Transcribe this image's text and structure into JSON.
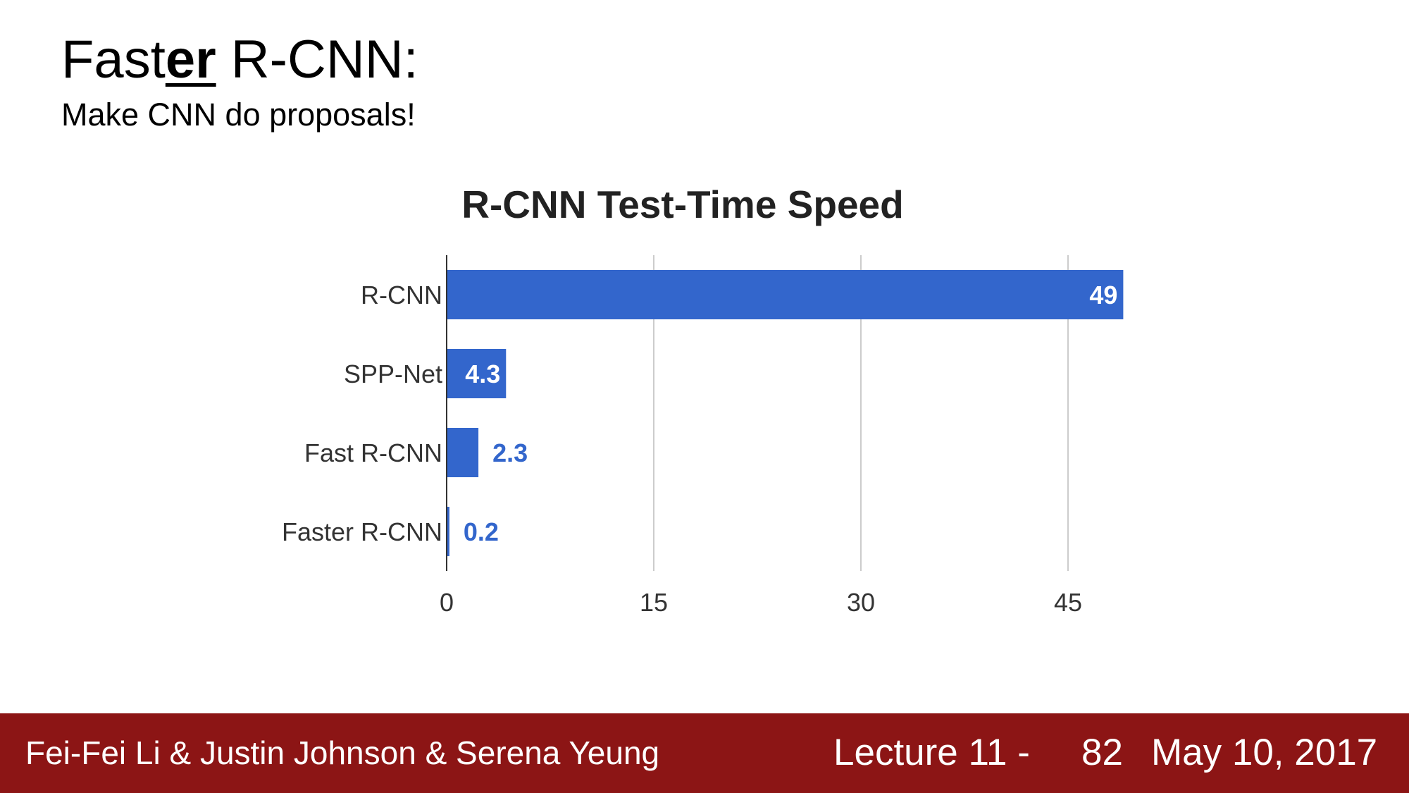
{
  "slide": {
    "title_prefix": "Fast",
    "title_emphasis": "er",
    "title_suffix": " R-CNN:",
    "subtitle": "Make CNN do proposals!"
  },
  "chart_data": {
    "type": "bar",
    "orientation": "horizontal",
    "title": "R-CNN Test-Time Speed",
    "categories": [
      "R-CNN",
      "SPP-Net",
      "Fast R-CNN",
      "Faster R-CNN"
    ],
    "values": [
      49,
      4.3,
      2.3,
      0.2
    ],
    "data_labels": [
      "49",
      "4.3",
      "2.3",
      "0.2"
    ],
    "x_ticks": [
      "0",
      "15",
      "30",
      "45"
    ],
    "xlim": [
      0,
      51
    ],
    "grid": true,
    "bar_color": "#3366cc",
    "label_inside_color": "#ffffff",
    "label_outside_color": "#3366cc"
  },
  "footer": {
    "authors": "Fei-Fei Li & Justin Johnson & Serena Yeung",
    "lecture": "Lecture 11 -",
    "page": "82",
    "date": "May 10, 2017",
    "background": "#8c1515"
  }
}
